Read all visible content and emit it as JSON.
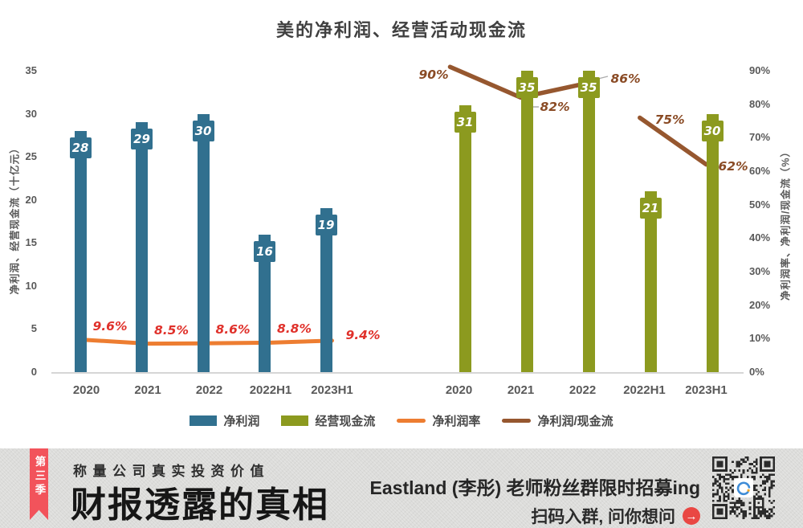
{
  "chart_data": {
    "type": "bar",
    "title": "美的净利润、经营活动现金流",
    "categories": [
      "2020",
      "2021",
      "2022",
      "2022H1",
      "2023H1"
    ],
    "series": [
      {
        "name": "净利润",
        "type": "bar",
        "axis": "left",
        "color": "#31708F",
        "values": [
          28,
          29,
          30,
          16,
          19
        ],
        "group": "left-cluster"
      },
      {
        "name": "经营现金流",
        "type": "bar",
        "axis": "left",
        "color": "#8C9A1F",
        "values": [
          31,
          35,
          35,
          21,
          30
        ],
        "group": "right-cluster"
      },
      {
        "name": "净利润率",
        "type": "line",
        "axis": "right",
        "color": "#ED7D31",
        "values": [
          9.6,
          8.5,
          8.6,
          8.8,
          9.4
        ],
        "labels": [
          "9.6%",
          "8.5%",
          "8.6%",
          "8.8%",
          "9.4%"
        ],
        "label_color": "#E0312B",
        "plotted_over": "left-cluster"
      },
      {
        "name": "净利润/现金流",
        "type": "line",
        "axis": "right",
        "color": "#96572F",
        "values": [
          90,
          82,
          86,
          75,
          62
        ],
        "labels": [
          "90%",
          "82%",
          "86%",
          "75%",
          "62%"
        ],
        "label_color": "#8A4B25",
        "break_after_index": 2,
        "plotted_over": "right-cluster"
      }
    ],
    "left_axis": {
      "title": "净利润、经营现金流（十亿元）",
      "range": [
        0,
        35
      ],
      "ticks": [
        0,
        5,
        10,
        15,
        20,
        25,
        30,
        35
      ]
    },
    "right_axis": {
      "title": "净利润率、净利润/现金流（%）",
      "range": [
        0,
        90
      ],
      "ticks": [
        "0%",
        "10%",
        "20%",
        "30%",
        "40%",
        "50%",
        "60%",
        "70%",
        "80%",
        "90%"
      ]
    },
    "grid": false,
    "legend_position": "bottom"
  },
  "banner": {
    "ribbon_label": "第三季",
    "tagline": "称量公司真实投资价值",
    "series_title": "财报透露的真相",
    "promo_line1": "Eastland (李彤) 老师粉丝群限时招募ing",
    "promo_line2": "扫码入群, 问你想问",
    "arrow_glyph": "→",
    "colors": {
      "ribbon": "#F2535B",
      "arrow_badge": "#E94743",
      "background": "#DCDCDA"
    }
  }
}
